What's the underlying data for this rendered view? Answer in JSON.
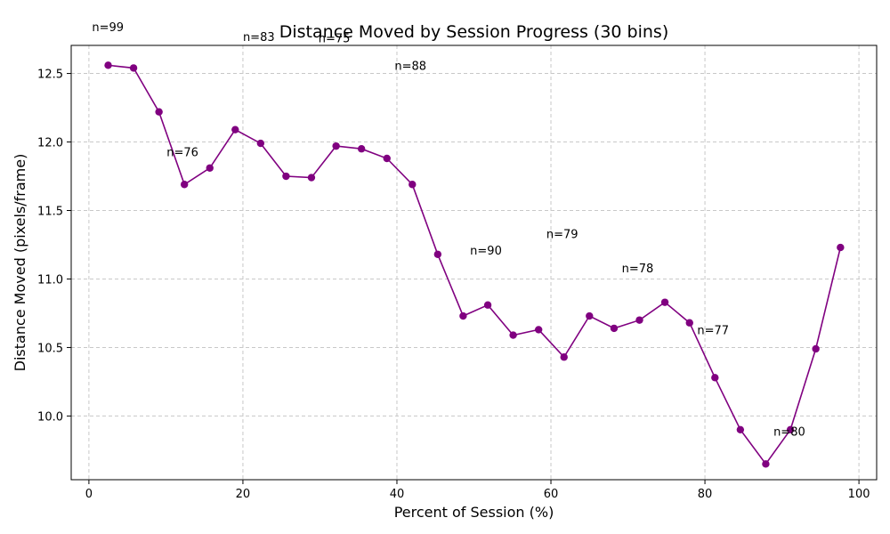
{
  "chart_data": {
    "type": "line",
    "title": "Distance Moved by Session Progress (30 bins)",
    "xlabel": "Percent of Session (%)",
    "ylabel": "Distance Moved (pixels/frame)",
    "xlim": [
      -2.3,
      102.3
    ],
    "ylim": [
      9.535,
      12.705
    ],
    "xticks": [
      0,
      20,
      40,
      60,
      80,
      100
    ],
    "yticks": [
      10.0,
      10.5,
      11.0,
      11.5,
      12.0,
      12.5
    ],
    "xtick_labels": [
      "0",
      "20",
      "40",
      "60",
      "80",
      "100"
    ],
    "ytick_labels": [
      "10.0",
      "10.5",
      "11.0",
      "11.5",
      "12.0",
      "12.5"
    ],
    "grid": true,
    "series": [
      {
        "color": "#800080",
        "x": [
          2.5,
          5.8,
          9.1,
          12.4,
          15.7,
          19.0,
          22.3,
          25.6,
          28.9,
          32.1,
          35.4,
          38.7,
          42.0,
          45.3,
          48.6,
          51.8,
          55.1,
          58.4,
          61.7,
          65.0,
          68.2,
          71.5,
          74.8,
          78.0,
          81.3,
          84.6,
          87.9,
          91.1,
          94.4,
          97.6
        ],
        "y": [
          12.56,
          12.54,
          12.22,
          11.69,
          11.81,
          12.09,
          11.99,
          11.75,
          11.74,
          11.97,
          11.95,
          11.88,
          11.69,
          11.18,
          10.73,
          10.81,
          10.59,
          10.63,
          10.43,
          10.73,
          10.64,
          10.7,
          10.83,
          10.68,
          10.28,
          9.9,
          9.65,
          9.9,
          10.49,
          11.23
        ]
      }
    ],
    "annotations": [
      {
        "text": "n=99",
        "x": 0.4,
        "y": 12.84
      },
      {
        "text": "n=83",
        "x": 20.0,
        "y": 12.77
      },
      {
        "text": "n=75",
        "x": 29.8,
        "y": 12.76
      },
      {
        "text": "n=88",
        "x": 39.7,
        "y": 12.56
      },
      {
        "text": "n=76",
        "x": 10.1,
        "y": 11.93
      },
      {
        "text": "n=90",
        "x": 49.5,
        "y": 11.21
      },
      {
        "text": "n=79",
        "x": 59.4,
        "y": 11.33
      },
      {
        "text": "n=78",
        "x": 69.2,
        "y": 11.08
      },
      {
        "text": "n=77",
        "x": 79.0,
        "y": 10.63
      },
      {
        "text": "n=80",
        "x": 88.9,
        "y": 9.89
      }
    ]
  }
}
